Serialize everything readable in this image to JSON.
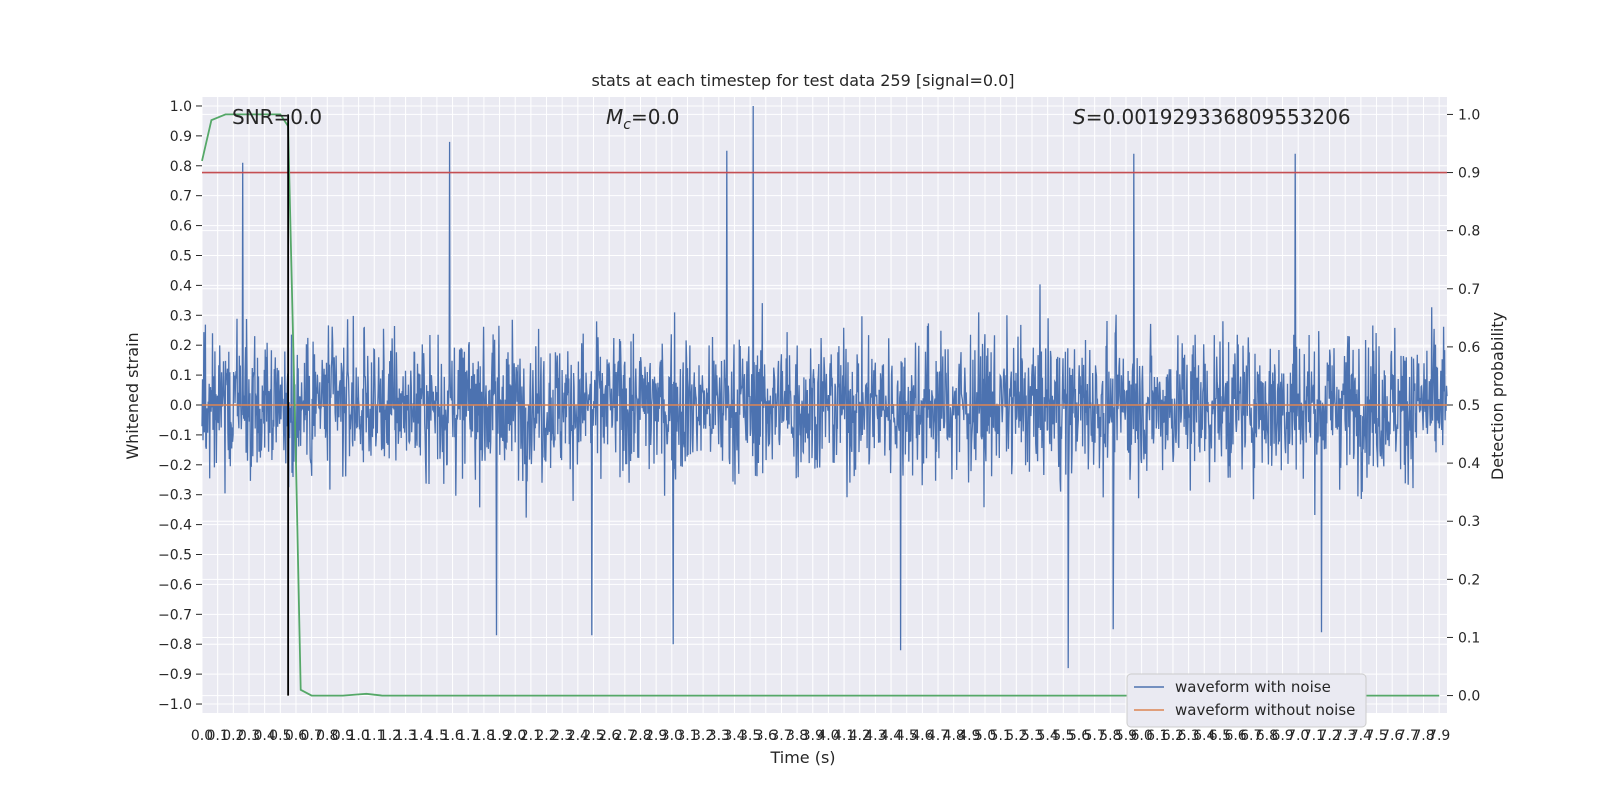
{
  "chart_data": {
    "type": "line",
    "title": "stats at each timestep for test data 259 [signal=0.0]",
    "xlabel": "Time (s)",
    "ylabel": "Whitened strain",
    "y2label": "Detection probability",
    "xlim": [
      0.0,
      7.95
    ],
    "ylim": [
      -1.03,
      1.03
    ],
    "y2lim": [
      -0.03,
      1.03
    ],
    "grid": true,
    "legend_position": "bottom-right",
    "x_ticks": [
      "0.0",
      "0.1",
      "0.2",
      "0.3",
      "0.4",
      "0.5",
      "0.6",
      "0.7",
      "0.8",
      "0.9",
      "1.0",
      "1.1",
      "1.2",
      "1.3",
      "1.4",
      "1.5",
      "1.6",
      "1.7",
      "1.8",
      "1.9",
      "2.0",
      "2.1",
      "2.2",
      "2.3",
      "2.4",
      "2.5",
      "2.6",
      "2.7",
      "2.8",
      "2.9",
      "3.0",
      "3.1",
      "3.2",
      "3.3",
      "3.4",
      "3.5",
      "3.6",
      "3.7",
      "3.8",
      "3.9",
      "4.0",
      "4.1",
      "4.2",
      "4.3",
      "4.4",
      "4.5",
      "4.6",
      "4.7",
      "4.8",
      "4.9",
      "5.0",
      "5.1",
      "5.2",
      "5.3",
      "5.4",
      "5.5",
      "5.6",
      "5.7",
      "5.8",
      "5.9",
      "6.0",
      "6.1",
      "6.2",
      "6.3",
      "6.4",
      "6.5",
      "6.6",
      "6.7",
      "6.8",
      "6.9",
      "7.0",
      "7.1",
      "7.2",
      "7.3",
      "7.4",
      "7.5",
      "7.6",
      "7.7",
      "7.8",
      "7.9"
    ],
    "y_ticks": [
      "1.0",
      "0.9",
      "0.8",
      "0.7",
      "0.6",
      "0.5",
      "0.4",
      "0.3",
      "0.2",
      "0.1",
      "0.0",
      "−0.1",
      "−0.2",
      "−0.3",
      "−0.4",
      "−0.5",
      "−0.6",
      "−0.7",
      "−0.8",
      "−0.9",
      "−1.0"
    ],
    "y2_ticks": [
      "1.0",
      "0.9",
      "0.8",
      "0.7",
      "0.6",
      "0.5",
      "0.4",
      "0.3",
      "0.2",
      "0.1",
      "0.0"
    ],
    "annotations": {
      "snr": "SNR=0.0",
      "mc_symbol": "M",
      "mc_sub": "c",
      "mc_value": "=0.0",
      "s_symbol": "S",
      "s_value": "=0.001929336809553206"
    },
    "threshold_y2": 0.9,
    "marker_x": 0.55,
    "series": [
      {
        "name": "waveform with noise",
        "color": "#4c72b0",
        "description_of_envelope": "dense noise, bulk roughly within ±0.4, peaks",
        "peaks": [
          {
            "x": 0.26,
            "y": 0.81
          },
          {
            "x": 1.58,
            "y": 0.88
          },
          {
            "x": 3.35,
            "y": 0.85
          },
          {
            "x": 3.52,
            "y": 1.0
          },
          {
            "x": 5.95,
            "y": 0.84
          },
          {
            "x": 6.98,
            "y": 0.84
          },
          {
            "x": 5.53,
            "y": -0.88
          },
          {
            "x": 4.46,
            "y": -0.82
          },
          {
            "x": 3.01,
            "y": -0.8
          },
          {
            "x": 1.88,
            "y": -0.77
          },
          {
            "x": 2.49,
            "y": -0.77
          },
          {
            "x": 5.82,
            "y": -0.75
          },
          {
            "x": 7.15,
            "y": -0.76
          }
        ]
      },
      {
        "name": "waveform without noise",
        "color": "#dd8452",
        "values_note": "flat",
        "y": 0.0
      },
      {
        "name": "",
        "color": "#55a868",
        "axis": "y2",
        "x": [
          0.0,
          0.06,
          0.15,
          0.3,
          0.45,
          0.5,
          0.55,
          0.6,
          0.63,
          0.7,
          0.8,
          0.9,
          1.0,
          1.05,
          1.15,
          1.3,
          2.0,
          4.0,
          6.0,
          7.9
        ],
        "y": [
          0.92,
          0.99,
          1.0,
          1.0,
          1.0,
          1.0,
          0.98,
          0.4,
          0.01,
          0.0,
          0.0,
          0.0,
          0.002,
          0.003,
          0.0,
          0.0,
          0.0,
          0.0,
          0.0,
          0.0
        ]
      }
    ],
    "threshold_color": "#c44e52",
    "marker_color": "#000000",
    "plot_bg": "#eaeaf2",
    "grid_color": "#ffffff"
  }
}
